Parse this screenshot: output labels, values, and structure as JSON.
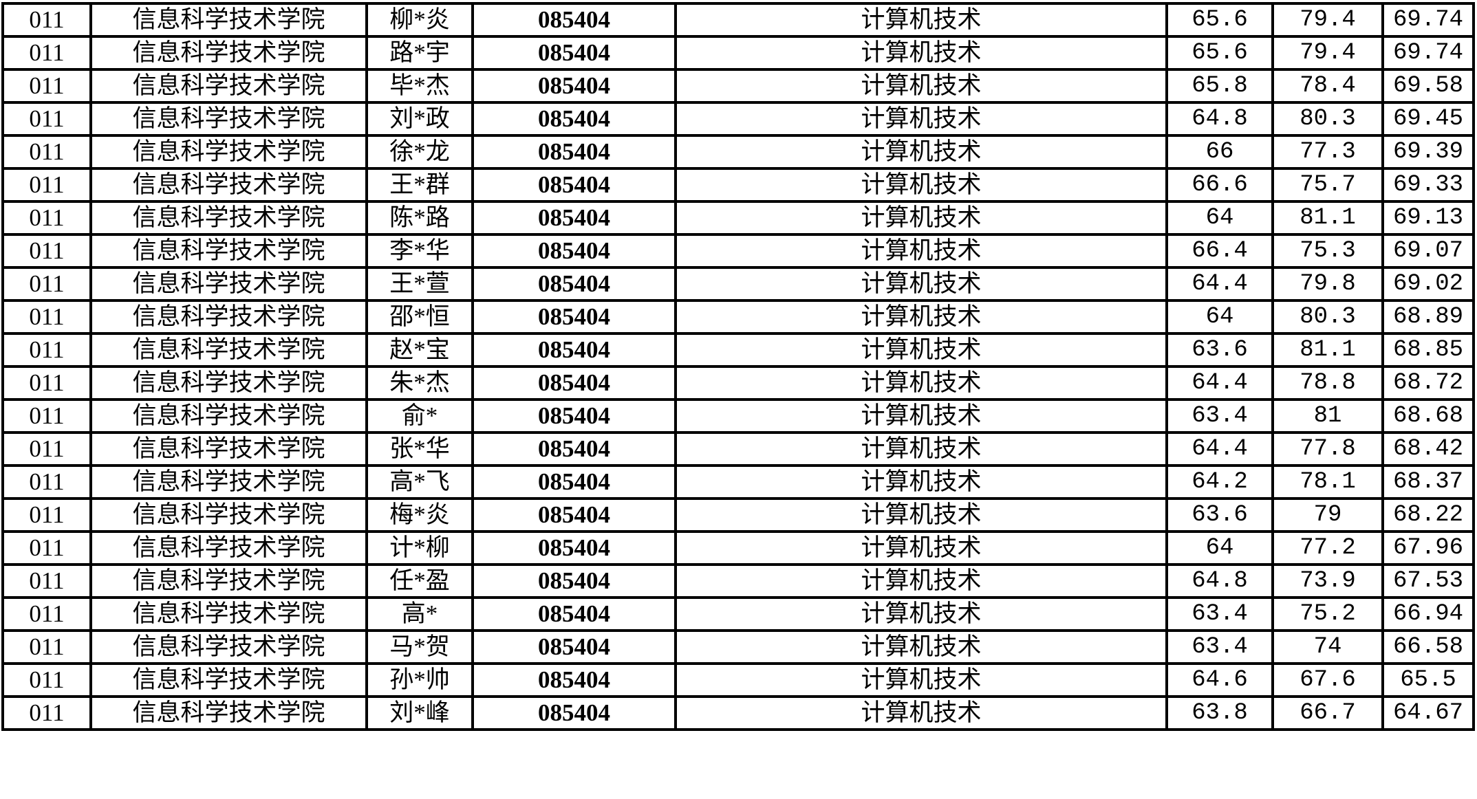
{
  "rows": [
    {
      "unit": "011",
      "college": "信息科学技术学院",
      "name": "柳*炎",
      "code": "085404",
      "major": "计算机技术",
      "s1": "65.6",
      "s2": "79.4",
      "total": "69.74"
    },
    {
      "unit": "011",
      "college": "信息科学技术学院",
      "name": "路*宇",
      "code": "085404",
      "major": "计算机技术",
      "s1": "65.6",
      "s2": "79.4",
      "total": "69.74"
    },
    {
      "unit": "011",
      "college": "信息科学技术学院",
      "name": "毕*杰",
      "code": "085404",
      "major": "计算机技术",
      "s1": "65.8",
      "s2": "78.4",
      "total": "69.58"
    },
    {
      "unit": "011",
      "college": "信息科学技术学院",
      "name": "刘*政",
      "code": "085404",
      "major": "计算机技术",
      "s1": "64.8",
      "s2": "80.3",
      "total": "69.45"
    },
    {
      "unit": "011",
      "college": "信息科学技术学院",
      "name": "徐*龙",
      "code": "085404",
      "major": "计算机技术",
      "s1": "66",
      "s2": "77.3",
      "total": "69.39"
    },
    {
      "unit": "011",
      "college": "信息科学技术学院",
      "name": "王*群",
      "code": "085404",
      "major": "计算机技术",
      "s1": "66.6",
      "s2": "75.7",
      "total": "69.33"
    },
    {
      "unit": "011",
      "college": "信息科学技术学院",
      "name": "陈*路",
      "code": "085404",
      "major": "计算机技术",
      "s1": "64",
      "s2": "81.1",
      "total": "69.13"
    },
    {
      "unit": "011",
      "college": "信息科学技术学院",
      "name": "李*华",
      "code": "085404",
      "major": "计算机技术",
      "s1": "66.4",
      "s2": "75.3",
      "total": "69.07"
    },
    {
      "unit": "011",
      "college": "信息科学技术学院",
      "name": "王*萱",
      "code": "085404",
      "major": "计算机技术",
      "s1": "64.4",
      "s2": "79.8",
      "total": "69.02"
    },
    {
      "unit": "011",
      "college": "信息科学技术学院",
      "name": "邵*恒",
      "code": "085404",
      "major": "计算机技术",
      "s1": "64",
      "s2": "80.3",
      "total": "68.89"
    },
    {
      "unit": "011",
      "college": "信息科学技术学院",
      "name": "赵*宝",
      "code": "085404",
      "major": "计算机技术",
      "s1": "63.6",
      "s2": "81.1",
      "total": "68.85"
    },
    {
      "unit": "011",
      "college": "信息科学技术学院",
      "name": "朱*杰",
      "code": "085404",
      "major": "计算机技术",
      "s1": "64.4",
      "s2": "78.8",
      "total": "68.72"
    },
    {
      "unit": "011",
      "college": "信息科学技术学院",
      "name": "俞*",
      "code": "085404",
      "major": "计算机技术",
      "s1": "63.4",
      "s2": "81",
      "total": "68.68"
    },
    {
      "unit": "011",
      "college": "信息科学技术学院",
      "name": "张*华",
      "code": "085404",
      "major": "计算机技术",
      "s1": "64.4",
      "s2": "77.8",
      "total": "68.42"
    },
    {
      "unit": "011",
      "college": "信息科学技术学院",
      "name": "高*飞",
      "code": "085404",
      "major": "计算机技术",
      "s1": "64.2",
      "s2": "78.1",
      "total": "68.37"
    },
    {
      "unit": "011",
      "college": "信息科学技术学院",
      "name": "梅*炎",
      "code": "085404",
      "major": "计算机技术",
      "s1": "63.6",
      "s2": "79",
      "total": "68.22"
    },
    {
      "unit": "011",
      "college": "信息科学技术学院",
      "name": "计*柳",
      "code": "085404",
      "major": "计算机技术",
      "s1": "64",
      "s2": "77.2",
      "total": "67.96"
    },
    {
      "unit": "011",
      "college": "信息科学技术学院",
      "name": "任*盈",
      "code": "085404",
      "major": "计算机技术",
      "s1": "64.8",
      "s2": "73.9",
      "total": "67.53"
    },
    {
      "unit": "011",
      "college": "信息科学技术学院",
      "name": "高*",
      "code": "085404",
      "major": "计算机技术",
      "s1": "63.4",
      "s2": "75.2",
      "total": "66.94"
    },
    {
      "unit": "011",
      "college": "信息科学技术学院",
      "name": "马*贺",
      "code": "085404",
      "major": "计算机技术",
      "s1": "63.4",
      "s2": "74",
      "total": "66.58"
    },
    {
      "unit": "011",
      "college": "信息科学技术学院",
      "name": "孙*帅",
      "code": "085404",
      "major": "计算机技术",
      "s1": "64.6",
      "s2": "67.6",
      "total": "65.5"
    },
    {
      "unit": "011",
      "college": "信息科学技术学院",
      "name": "刘*峰",
      "code": "085404",
      "major": "计算机技术",
      "s1": "63.8",
      "s2": "66.7",
      "total": "64.67"
    }
  ]
}
